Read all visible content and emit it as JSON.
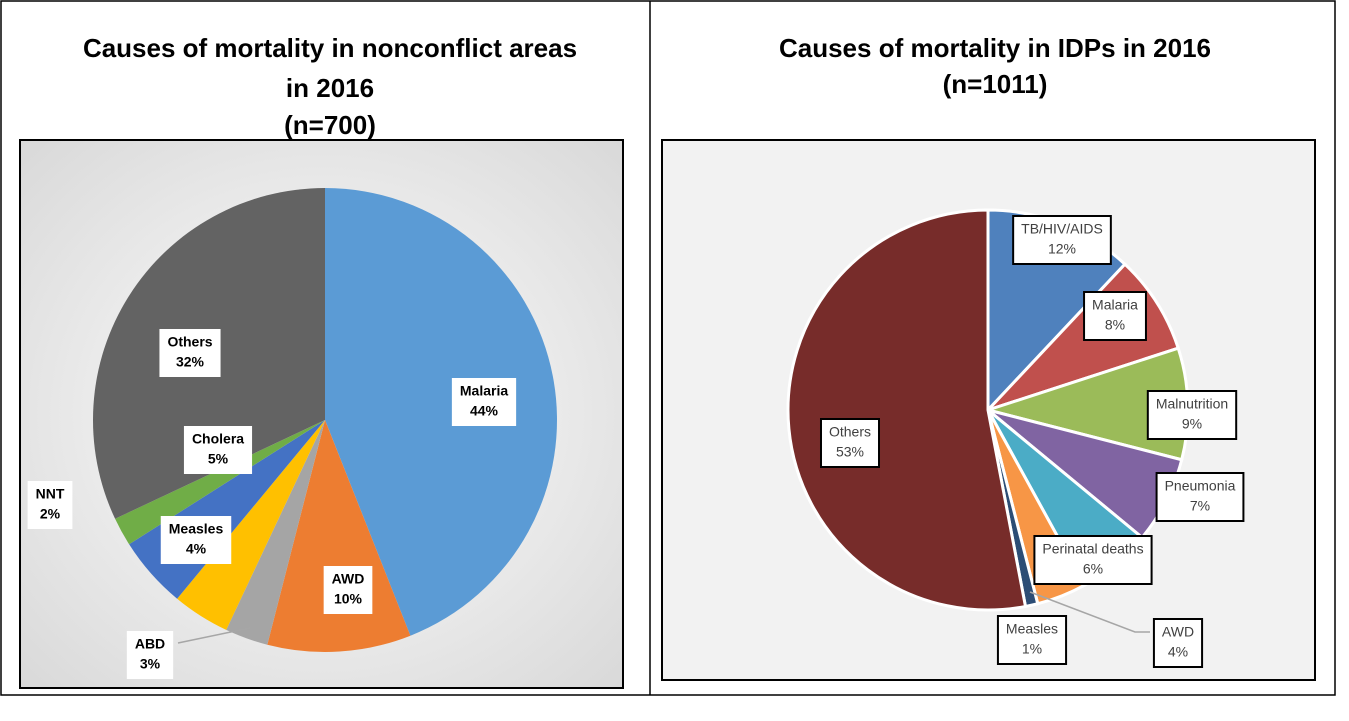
{
  "chart_data": [
    {
      "type": "pie",
      "title": [
        "Causes of mortality in nonconflict areas",
        "in 2016",
        "(n=700)"
      ],
      "categories": [
        "Malaria",
        "AWD",
        "ABD",
        "Measles",
        "Cholera",
        "NNT",
        "Others"
      ],
      "values": [
        44,
        10,
        3,
        4,
        5,
        2,
        32
      ],
      "value_labels": [
        "44%",
        "10%",
        "3%",
        "4%",
        "5%",
        "2%",
        "32%"
      ],
      "colors": [
        "#5b9bd5",
        "#ed7d31",
        "#a5a5a5",
        "#ffc000",
        "#4472c4",
        "#70ad47",
        "#636363"
      ]
    },
    {
      "type": "pie",
      "title": [
        "Causes of mortality in IDPs in 2016",
        "(n=1011)"
      ],
      "categories": [
        "TB/HIV/AIDS",
        "Malaria",
        "Malnutrition",
        "Pneumonia",
        "Perinatal deaths",
        "AWD",
        "Measles",
        "Others"
      ],
      "values": [
        12,
        8,
        9,
        7,
        6,
        4,
        1,
        53
      ],
      "value_labels": [
        "12%",
        "8%",
        "9%",
        "7%",
        "6%",
        "4%",
        "1%",
        "53%"
      ],
      "colors": [
        "#4f81bd",
        "#c0504d",
        "#9bbb59",
        "#8064a2",
        "#4bacc6",
        "#f79646",
        "#2c4d75",
        "#772c2a"
      ]
    }
  ]
}
